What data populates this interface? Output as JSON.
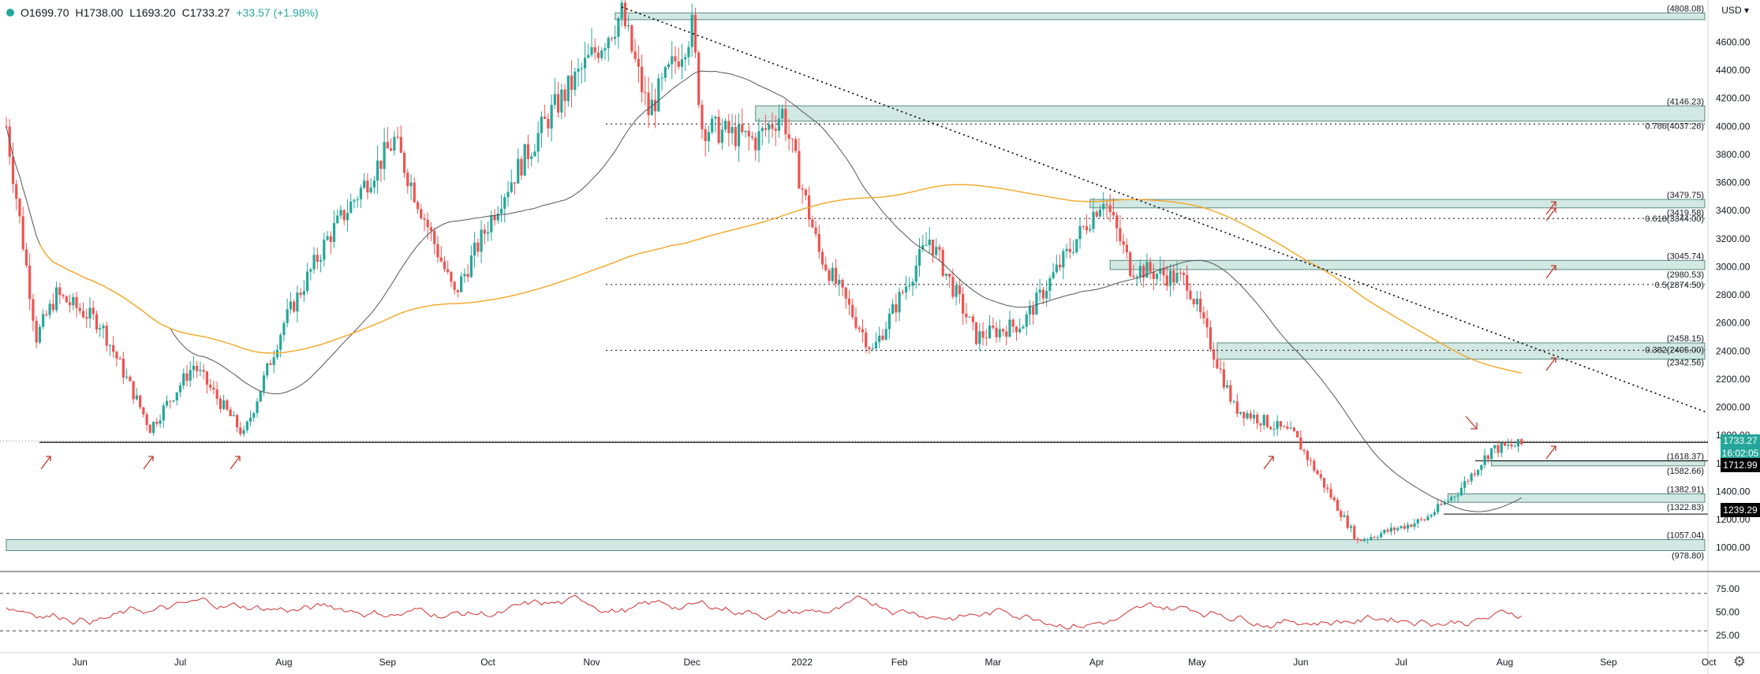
{
  "ohlc": {
    "open": "O1699.70",
    "high": "H1738.00",
    "low": "L1693.20",
    "close": "C1733.27",
    "change": "+33.57 (+1.98%)"
  },
  "currency": "USD",
  "current_price": "1733.27",
  "countdown": "16:02:05",
  "price_labels": {
    "lbl1712": "1712.99",
    "lbl1239": "1239.29"
  },
  "colors": {
    "up": "#26a69a",
    "down": "#ef5350",
    "zone": "#b2d8d0",
    "ma_long": "#f5a623",
    "ma_short": "#555555",
    "rsi": "#d32f2f",
    "trend": "#000000",
    "arrow": "#c0392b"
  },
  "chart_data": {
    "type": "candlestick",
    "y_axis_ticks": [
      1000,
      1200,
      1400,
      1600,
      1800,
      2000,
      2200,
      2400,
      2600,
      2800,
      3000,
      3200,
      3400,
      3600,
      3800,
      4000,
      4200,
      4400,
      4600
    ],
    "ylim": [
      830,
      4900
    ],
    "x_labels": [
      "Jun",
      "Jul",
      "Aug",
      "Sep",
      "Oct",
      "Nov",
      "Dec",
      "2022",
      "Feb",
      "Mar",
      "Apr",
      "May",
      "Jun",
      "Jul",
      "Aug",
      "Sep",
      "Oct"
    ],
    "zones": [
      {
        "top": 4808.08,
        "bottom": 4760,
        "label": "(4808.08)",
        "start": "2021-11-08"
      },
      {
        "top": 4146.23,
        "bottom": 4037.26,
        "label": "(4146.23)",
        "label2": "0.786(4037.26)",
        "start": "2021-12-20"
      },
      {
        "top": 3479.75,
        "bottom": 3419.58,
        "label": "(3479.75)",
        "label2": "(3419.58)",
        "start": "2022-03-30"
      },
      {
        "top": 3045.74,
        "bottom": 2980.53,
        "label": "(3045.74)",
        "label2": "(2980.53)",
        "start": "2022-04-05"
      },
      {
        "top": 2458.15,
        "bottom": 2342.56,
        "label": "(2458.15)",
        "label2": "0.382(2405.00)",
        "label3": "(2342.56)",
        "start": "2022-05-07"
      },
      {
        "top": 1618.37,
        "bottom": 1582.66,
        "label": "(1618.37)",
        "label2": "(1582.66)",
        "start": "2022-07-28"
      },
      {
        "top": 1382.91,
        "bottom": 1322.83,
        "label": "(1382.91)",
        "label2": "(1322.83)",
        "start": "2022-07-15"
      },
      {
        "top": 1057.04,
        "bottom": 978.8,
        "label": "(1057.04)",
        "label2": "(978.80)",
        "start": "2021-05-10"
      }
    ],
    "fib_lines": [
      {
        "value": 4017.0,
        "label": ""
      },
      {
        "value": 3344.0,
        "label": "0.618(3344.00)"
      },
      {
        "value": 2874.5,
        "label": "0.5(2874.50)"
      },
      {
        "value": 2405.0,
        "label": ""
      }
    ],
    "horizontal_lines": [
      1712.99,
      1239.29
    ],
    "rsi": {
      "levels": [
        30,
        70
      ],
      "ticks": [
        25,
        50,
        75
      ]
    }
  }
}
